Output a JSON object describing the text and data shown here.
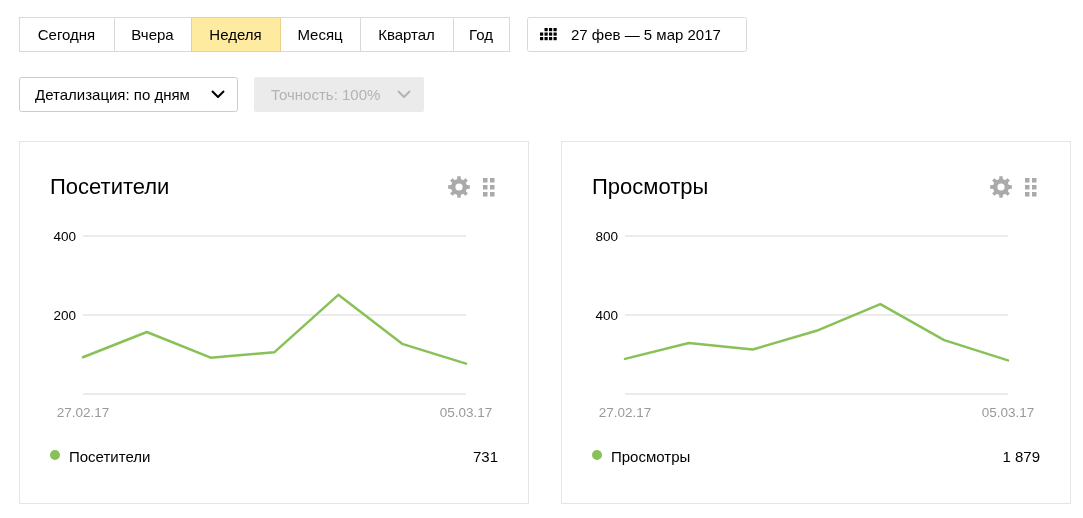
{
  "chart_data": [
    {
      "type": "other",
      "annotations": [
        "Сегодня",
        "Вчера",
        "Неделя",
        "Месяц",
        "Квартал",
        "Год",
        "27 фев — 5 мар 2017",
        "Детализация: по дням",
        "Точность: 100%"
      ]
    },
    {
      "type": "line",
      "title": "Посетители",
      "x": [
        "2017-02-27",
        "2017-02-28",
        "2017-03-01",
        "2017-03-02",
        "2017-03-03",
        "2017-03-04",
        "2017-03-05"
      ],
      "series": [
        {
          "name": "Посетители",
          "color": "#88c157",
          "values": [
            93,
            157,
            92,
            106,
            251,
            127,
            77
          ]
        }
      ],
      "xlim": [
        "2017-02-27",
        "2017-03-05"
      ],
      "xticks": [
        {
          "value": "2017-02-27",
          "label": "27.02.17"
        },
        {
          "value": "2017-03-05",
          "label": "05.03.17"
        }
      ],
      "ylim": [
        0,
        400
      ],
      "yticks": [
        {
          "value": 0,
          "label": null
        },
        200,
        400
      ],
      "grid": "y",
      "legend": "bottom",
      "annotations": [
        "731"
      ]
    },
    {
      "type": "line",
      "title": "Просмотры",
      "x": [
        "2017-02-27",
        "2017-02-28",
        "2017-03-01",
        "2017-03-02",
        "2017-03-03",
        "2017-03-04",
        "2017-03-05"
      ],
      "series": [
        {
          "name": "Просмотры",
          "color": "#88c157",
          "values": [
            178,
            258,
            225,
            320,
            455,
            273,
            170
          ]
        }
      ],
      "xlim": [
        "2017-02-27",
        "2017-03-05"
      ],
      "xticks": [
        {
          "value": "2017-02-27",
          "label": "27.02.17"
        },
        {
          "value": "2017-03-05",
          "label": "05.03.17"
        }
      ],
      "ylim": [
        0,
        800
      ],
      "yticks": [
        {
          "value": 0,
          "label": null
        },
        400,
        800
      ],
      "grid": "y",
      "legend": "bottom",
      "annotations": [
        "1 879"
      ]
    }
  ]
}
